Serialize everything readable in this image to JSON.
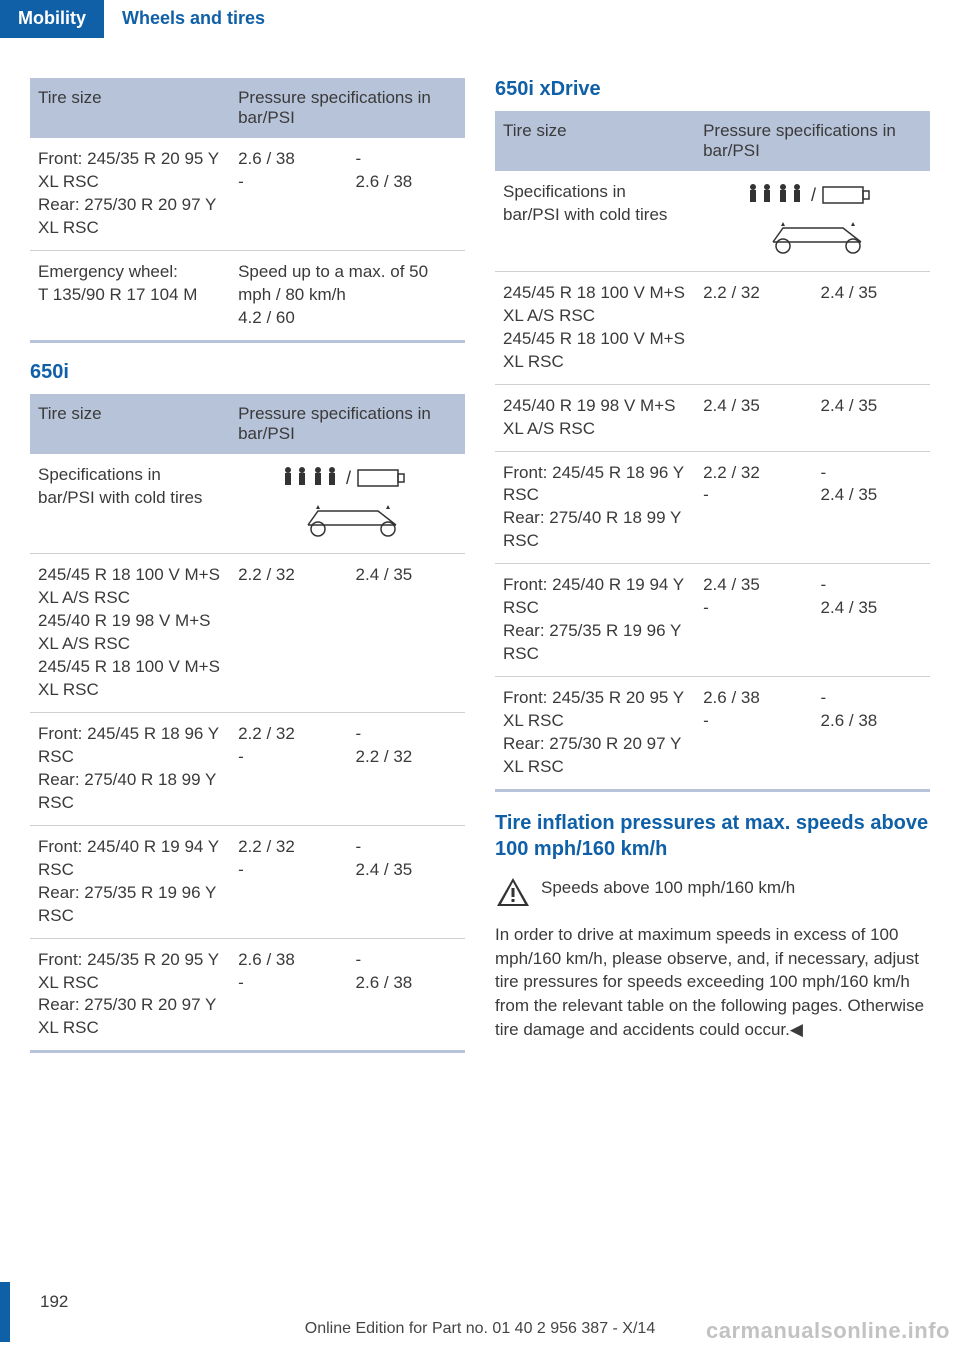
{
  "topbar": {
    "active": "Mobility",
    "inactive": "Wheels and tires"
  },
  "table1": {
    "h1": "Tire size",
    "h2": "Pressure specifications in bar/PSI",
    "rows": [
      {
        "c1": "Front: 245/35 R 20 95 Y XL RSC\nRear: 275/30 R 20 97 Y XL RSC",
        "c2": "2.6 / 38\n-",
        "c3": "-\n2.6 / 38"
      },
      {
        "c1": "Emergency wheel:\nT 135/90 R 17 104 M",
        "c2full": "Speed up to a max. of 50 mph / 80 km/h\n4.2 / 60"
      }
    ]
  },
  "section650i": "650i",
  "table2": {
    "h1": "Tire size",
    "h2": "Pressure specifications in bar/PSI",
    "specrow": "Specifications in bar/PSI with cold tires",
    "rows": [
      {
        "c1": "245/45 R 18 100 V M+S XL A/S RSC\n245/40 R 19 98 V M+S XL A/S RSC\n245/45 R 18 100 V M+S XL RSC",
        "c2": "2.2 / 32",
        "c3": "2.4 / 35"
      },
      {
        "c1": "Front: 245/45 R 18 96 Y RSC\nRear: 275/40 R 18 99 Y RSC",
        "c2": "2.2 / 32\n-",
        "c3": "-\n2.2 / 32"
      },
      {
        "c1": "Front: 245/40 R 19 94 Y RSC\nRear: 275/35 R 19 96 Y RSC",
        "c2": "2.2 / 32\n-",
        "c3": "-\n2.4 / 35"
      },
      {
        "c1": "Front: 245/35 R 20 95 Y XL RSC\nRear: 275/30 R 20 97 Y XL RSC",
        "c2": "2.6 / 38\n-",
        "c3": "-\n2.6 / 38"
      }
    ]
  },
  "section650ix": "650i xDrive",
  "table3": {
    "h1": "Tire size",
    "h2": "Pressure specifications in bar/PSI",
    "specrow": "Specifications in bar/PSI with cold tires",
    "rows": [
      {
        "c1": "245/45 R 18 100 V M+S XL A/S RSC\n245/45 R 18 100 V M+S XL RSC",
        "c2": "2.2 / 32",
        "c3": "2.4 / 35"
      },
      {
        "c1": "245/40 R 19 98 V M+S XL A/S RSC",
        "c2": "2.4 / 35",
        "c3": "2.4 / 35"
      },
      {
        "c1": "Front: 245/45 R 18 96 Y RSC\nRear: 275/40 R 18 99 Y RSC",
        "c2": "2.2 / 32\n-",
        "c3": "-\n2.4 / 35"
      },
      {
        "c1": "Front: 245/40 R 19 94 Y RSC\nRear: 275/35 R 19 96 Y RSC",
        "c2": "2.4 / 35\n-",
        "c3": "-\n2.4 / 35"
      },
      {
        "c1": "Front: 245/35 R 20 95 Y XL RSC\nRear: 275/30 R 20 97 Y XL RSC",
        "c2": "2.6 / 38\n-",
        "c3": "-\n2.6 / 38"
      }
    ]
  },
  "inflSection": "Tire inflation pressures at max. speeds above 100 mph/160 km/h",
  "warnHead": "Speeds above 100 mph/160 km/h",
  "warnBody": "In order to drive at maximum speeds in excess of 100 mph/160 km/h, please observe, and, if necessary, adjust tire pressures for speeds exceeding 100 mph/160 km/h from the relevant table on the following pages. Otherwise tire damage and accidents could occur.◀",
  "pageNum": "192",
  "footer": "Online Edition for Part no. 01 40 2 956 387 - X/14",
  "watermark": "carmanualsonline.info"
}
